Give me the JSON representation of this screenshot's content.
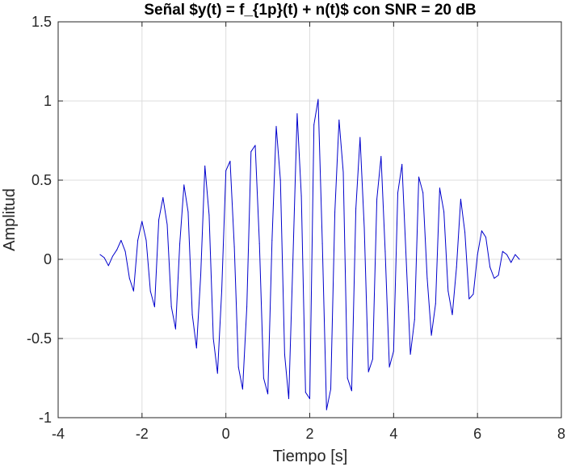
{
  "chart_data": {
    "type": "line",
    "title": "Señal $y(t) = f_{1p}(t) + n(t)$ con SNR = 20 dB",
    "xlabel": "Tiempo [s]",
    "ylabel": "Amplitud",
    "xlim": [
      -4,
      8
    ],
    "ylim": [
      -1,
      1.5
    ],
    "x_ticks": [
      -4,
      -2,
      0,
      2,
      4,
      6,
      8
    ],
    "y_ticks": [
      -1,
      -0.5,
      0,
      0.5,
      1,
      1.5
    ],
    "x_tick_labels": [
      "-4",
      "-2",
      "0",
      "2",
      "4",
      "6",
      "8"
    ],
    "y_tick_labels": [
      "-1",
      "-0.5",
      "0",
      "0.5",
      "1",
      "1.5"
    ],
    "grid": true,
    "box": true,
    "line_color": "#0000cc",
    "series": [
      {
        "x": [
          -3.0,
          -2.9,
          -2.8,
          -2.7,
          -2.6,
          -2.5,
          -2.4,
          -2.3,
          -2.2,
          -2.1,
          -2.0,
          -1.9,
          -1.8,
          -1.7,
          -1.6,
          -1.5,
          -1.4,
          -1.3,
          -1.2,
          -1.1,
          -1.0,
          -0.9,
          -0.8,
          -0.7,
          -0.6,
          -0.5,
          -0.4,
          -0.3,
          -0.2,
          -0.1,
          0.0,
          0.1,
          0.2,
          0.3,
          0.4,
          0.5,
          0.6,
          0.7,
          0.8,
          0.9,
          1.0,
          1.1,
          1.2,
          1.3,
          1.4,
          1.5,
          1.6,
          1.7,
          1.8,
          1.9,
          2.0,
          2.1,
          2.2,
          2.3,
          2.4,
          2.5,
          2.6,
          2.7,
          2.8,
          2.9,
          3.0,
          3.1,
          3.2,
          3.3,
          3.4,
          3.5,
          3.6,
          3.7,
          3.8,
          3.9,
          4.0,
          4.1,
          4.2,
          4.3,
          4.4,
          4.5,
          4.6,
          4.7,
          4.8,
          4.9,
          5.0,
          5.1,
          5.2,
          5.3,
          5.4,
          5.5,
          5.6,
          5.7,
          5.8,
          5.9,
          6.0,
          6.1,
          6.2,
          6.3,
          6.4,
          6.5,
          6.6,
          6.7,
          6.8,
          6.9,
          7.0
        ],
        "y": [
          0.03,
          0.01,
          -0.04,
          0.02,
          0.06,
          0.12,
          0.05,
          -0.12,
          -0.2,
          0.12,
          0.24,
          0.12,
          -0.2,
          -0.3,
          0.25,
          0.39,
          0.22,
          -0.3,
          -0.44,
          0.1,
          0.47,
          0.3,
          -0.35,
          -0.56,
          -0.1,
          0.59,
          0.28,
          -0.5,
          -0.72,
          -0.2,
          0.56,
          0.62,
          0.08,
          -0.68,
          -0.82,
          -0.3,
          0.68,
          0.72,
          0.1,
          -0.75,
          -0.85,
          0.12,
          0.84,
          0.5,
          -0.6,
          -0.88,
          0.0,
          0.92,
          0.4,
          -0.84,
          -0.88,
          0.85,
          1.01,
          0.1,
          -0.95,
          -0.82,
          0.3,
          0.88,
          0.55,
          -0.75,
          -0.83,
          0.32,
          0.77,
          0.2,
          -0.71,
          -0.63,
          0.38,
          0.65,
          0.05,
          -0.68,
          -0.58,
          0.42,
          0.6,
          0.0,
          -0.6,
          -0.38,
          0.52,
          0.42,
          -0.12,
          -0.48,
          -0.28,
          0.45,
          0.3,
          -0.2,
          -0.35,
          -0.05,
          0.38,
          0.17,
          -0.25,
          -0.22,
          0.03,
          0.18,
          0.14,
          -0.05,
          -0.12,
          -0.1,
          0.05,
          0.03,
          -0.02,
          0.03,
          0.0
        ]
      }
    ]
  }
}
